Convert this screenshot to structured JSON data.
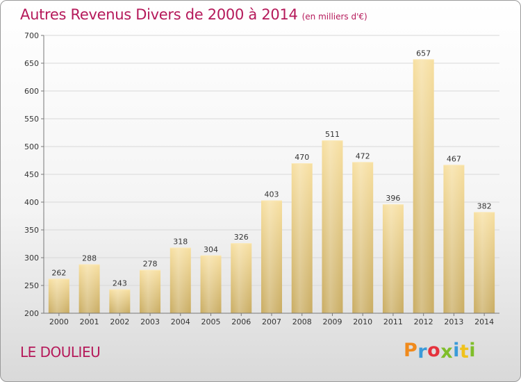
{
  "chart_data": {
    "type": "bar",
    "title": "Autres Revenus Divers de 2000 à 2014",
    "subtitle": "(en milliers d'€)",
    "categories": [
      "2000",
      "2001",
      "2002",
      "2003",
      "2004",
      "2005",
      "2006",
      "2007",
      "2008",
      "2009",
      "2010",
      "2011",
      "2012",
      "2013",
      "2014"
    ],
    "values": [
      262,
      288,
      243,
      278,
      318,
      304,
      326,
      403,
      470,
      511,
      472,
      396,
      657,
      467,
      382
    ],
    "ylim": [
      200,
      700
    ],
    "yticks": [
      200,
      250,
      300,
      350,
      400,
      450,
      500,
      550,
      600,
      650,
      700
    ],
    "grid": true,
    "bar_color": "#e8cd85"
  },
  "place_name": "LE DOULIEU",
  "brand": {
    "letters": [
      "P",
      "r",
      "o",
      "x",
      "i",
      "t",
      "i"
    ],
    "colors": [
      "#f08a1c",
      "#3a9ad9",
      "#e5323d",
      "#7fbe2a",
      "#3a9ad9",
      "#f0c21c",
      "#7fbe2a"
    ]
  }
}
